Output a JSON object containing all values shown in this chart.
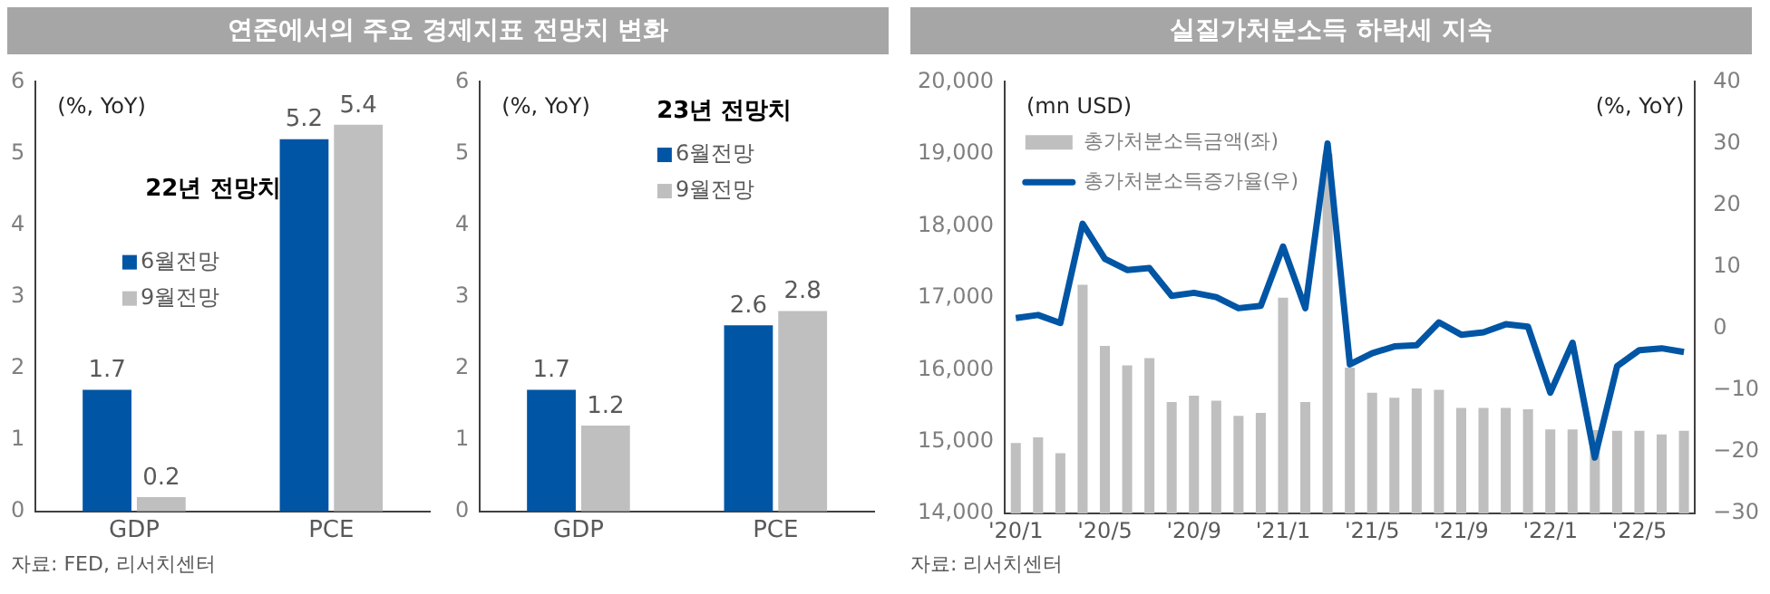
{
  "chart_data": [
    {
      "type": "bar",
      "title": "연준에서의 주요 경제지표 전망치 변화",
      "ylabel": "(%, YoY)",
      "annotations": [
        "22년 전망치",
        "자료: FED, 리서치센터"
      ],
      "categories": [
        "GDP",
        "PCE"
      ],
      "series": [
        {
          "name": "6월전망",
          "color": "#0055a5",
          "values": [
            1.7,
            5.2
          ]
        },
        {
          "name": "9월전망",
          "color": "#bfbfbf",
          "values": [
            0.2,
            5.4
          ]
        }
      ],
      "ylim": [
        0,
        6
      ],
      "yticks": [
        0,
        1,
        2,
        3,
        4,
        5,
        6
      ],
      "grid": false,
      "legend": "left",
      "data_labels": true
    },
    {
      "type": "bar",
      "ylabel": "(%, YoY)",
      "annotations": [
        "23년 전망치"
      ],
      "categories": [
        "GDP",
        "PCE"
      ],
      "series": [
        {
          "name": "6월전망",
          "color": "#0055a5",
          "values": [
            1.7,
            2.6
          ]
        },
        {
          "name": "9월전망",
          "color": "#bfbfbf",
          "values": [
            1.2,
            2.8
          ]
        }
      ],
      "ylim": [
        0,
        6
      ],
      "yticks": [
        0,
        1,
        2,
        3,
        4,
        5,
        6
      ],
      "grid": false,
      "legend": "top",
      "data_labels": true
    },
    {
      "type": "bar",
      "title": "실질가처분소득 하락세 지속",
      "ylabel": "(mn USD)",
      "y2label": "(%, YoY)",
      "annotations": [
        "자료: 리서치센터"
      ],
      "categories": [
        "'20/1",
        null,
        null,
        null,
        "'20/5",
        null,
        null,
        null,
        "'20/9",
        null,
        null,
        null,
        "'21/1",
        null,
        null,
        null,
        "'21/5",
        null,
        null,
        null,
        "'21/9",
        null,
        null,
        null,
        "'22/1",
        null,
        null,
        null,
        "'22/5",
        null,
        null
      ],
      "series": [
        {
          "name": "총가처분소득금액(좌)",
          "type": "bar",
          "color": "#bfbfbf",
          "values": [
            14980,
            15060,
            14840,
            17180,
            16330,
            16060,
            16160,
            15550,
            15640,
            15570,
            15360,
            15400,
            17000,
            15550,
            19000,
            16030,
            15680,
            15610,
            15740,
            15720,
            15470,
            15470,
            15470,
            15450,
            15170,
            15170,
            15160,
            15150,
            15150,
            15100,
            15150
          ]
        },
        {
          "name": "총가처분소득증가율(우)",
          "type": "line",
          "axis": "y2",
          "color": "#0055a5",
          "values": [
            1.7,
            2.2,
            0.9,
            17.0,
            11.3,
            9.5,
            9.8,
            5.3,
            5.8,
            5.1,
            3.3,
            3.7,
            13.3,
            3.3,
            30,
            -5.8,
            -4.0,
            -2.9,
            -2.7,
            1.0,
            -1.0,
            -0.6,
            0.7,
            0.3,
            -10.4,
            -2.3,
            -20.9,
            -6.1,
            -3.5,
            -3.2,
            -3.8
          ]
        }
      ],
      "ylim": [
        14000,
        20000
      ],
      "yticks": [
        {
          "value": 14000,
          "label": "14,000"
        },
        {
          "value": 15000,
          "label": "15,000"
        },
        {
          "value": 16000,
          "label": "16,000"
        },
        {
          "value": 17000,
          "label": "17,000"
        },
        {
          "value": 18000,
          "label": "18,000"
        },
        {
          "value": 19000,
          "label": "19,000"
        },
        {
          "value": 20000,
          "label": "20,000"
        }
      ],
      "y2lim": [
        -30,
        40
      ],
      "y2ticks": [
        {
          "value": -30,
          "label": "−30"
        },
        {
          "value": -20,
          "label": "−20"
        },
        {
          "value": -10,
          "label": "−10"
        },
        0,
        10,
        20,
        30,
        40
      ],
      "grid": false,
      "legend": "top",
      "marker": "none"
    }
  ]
}
